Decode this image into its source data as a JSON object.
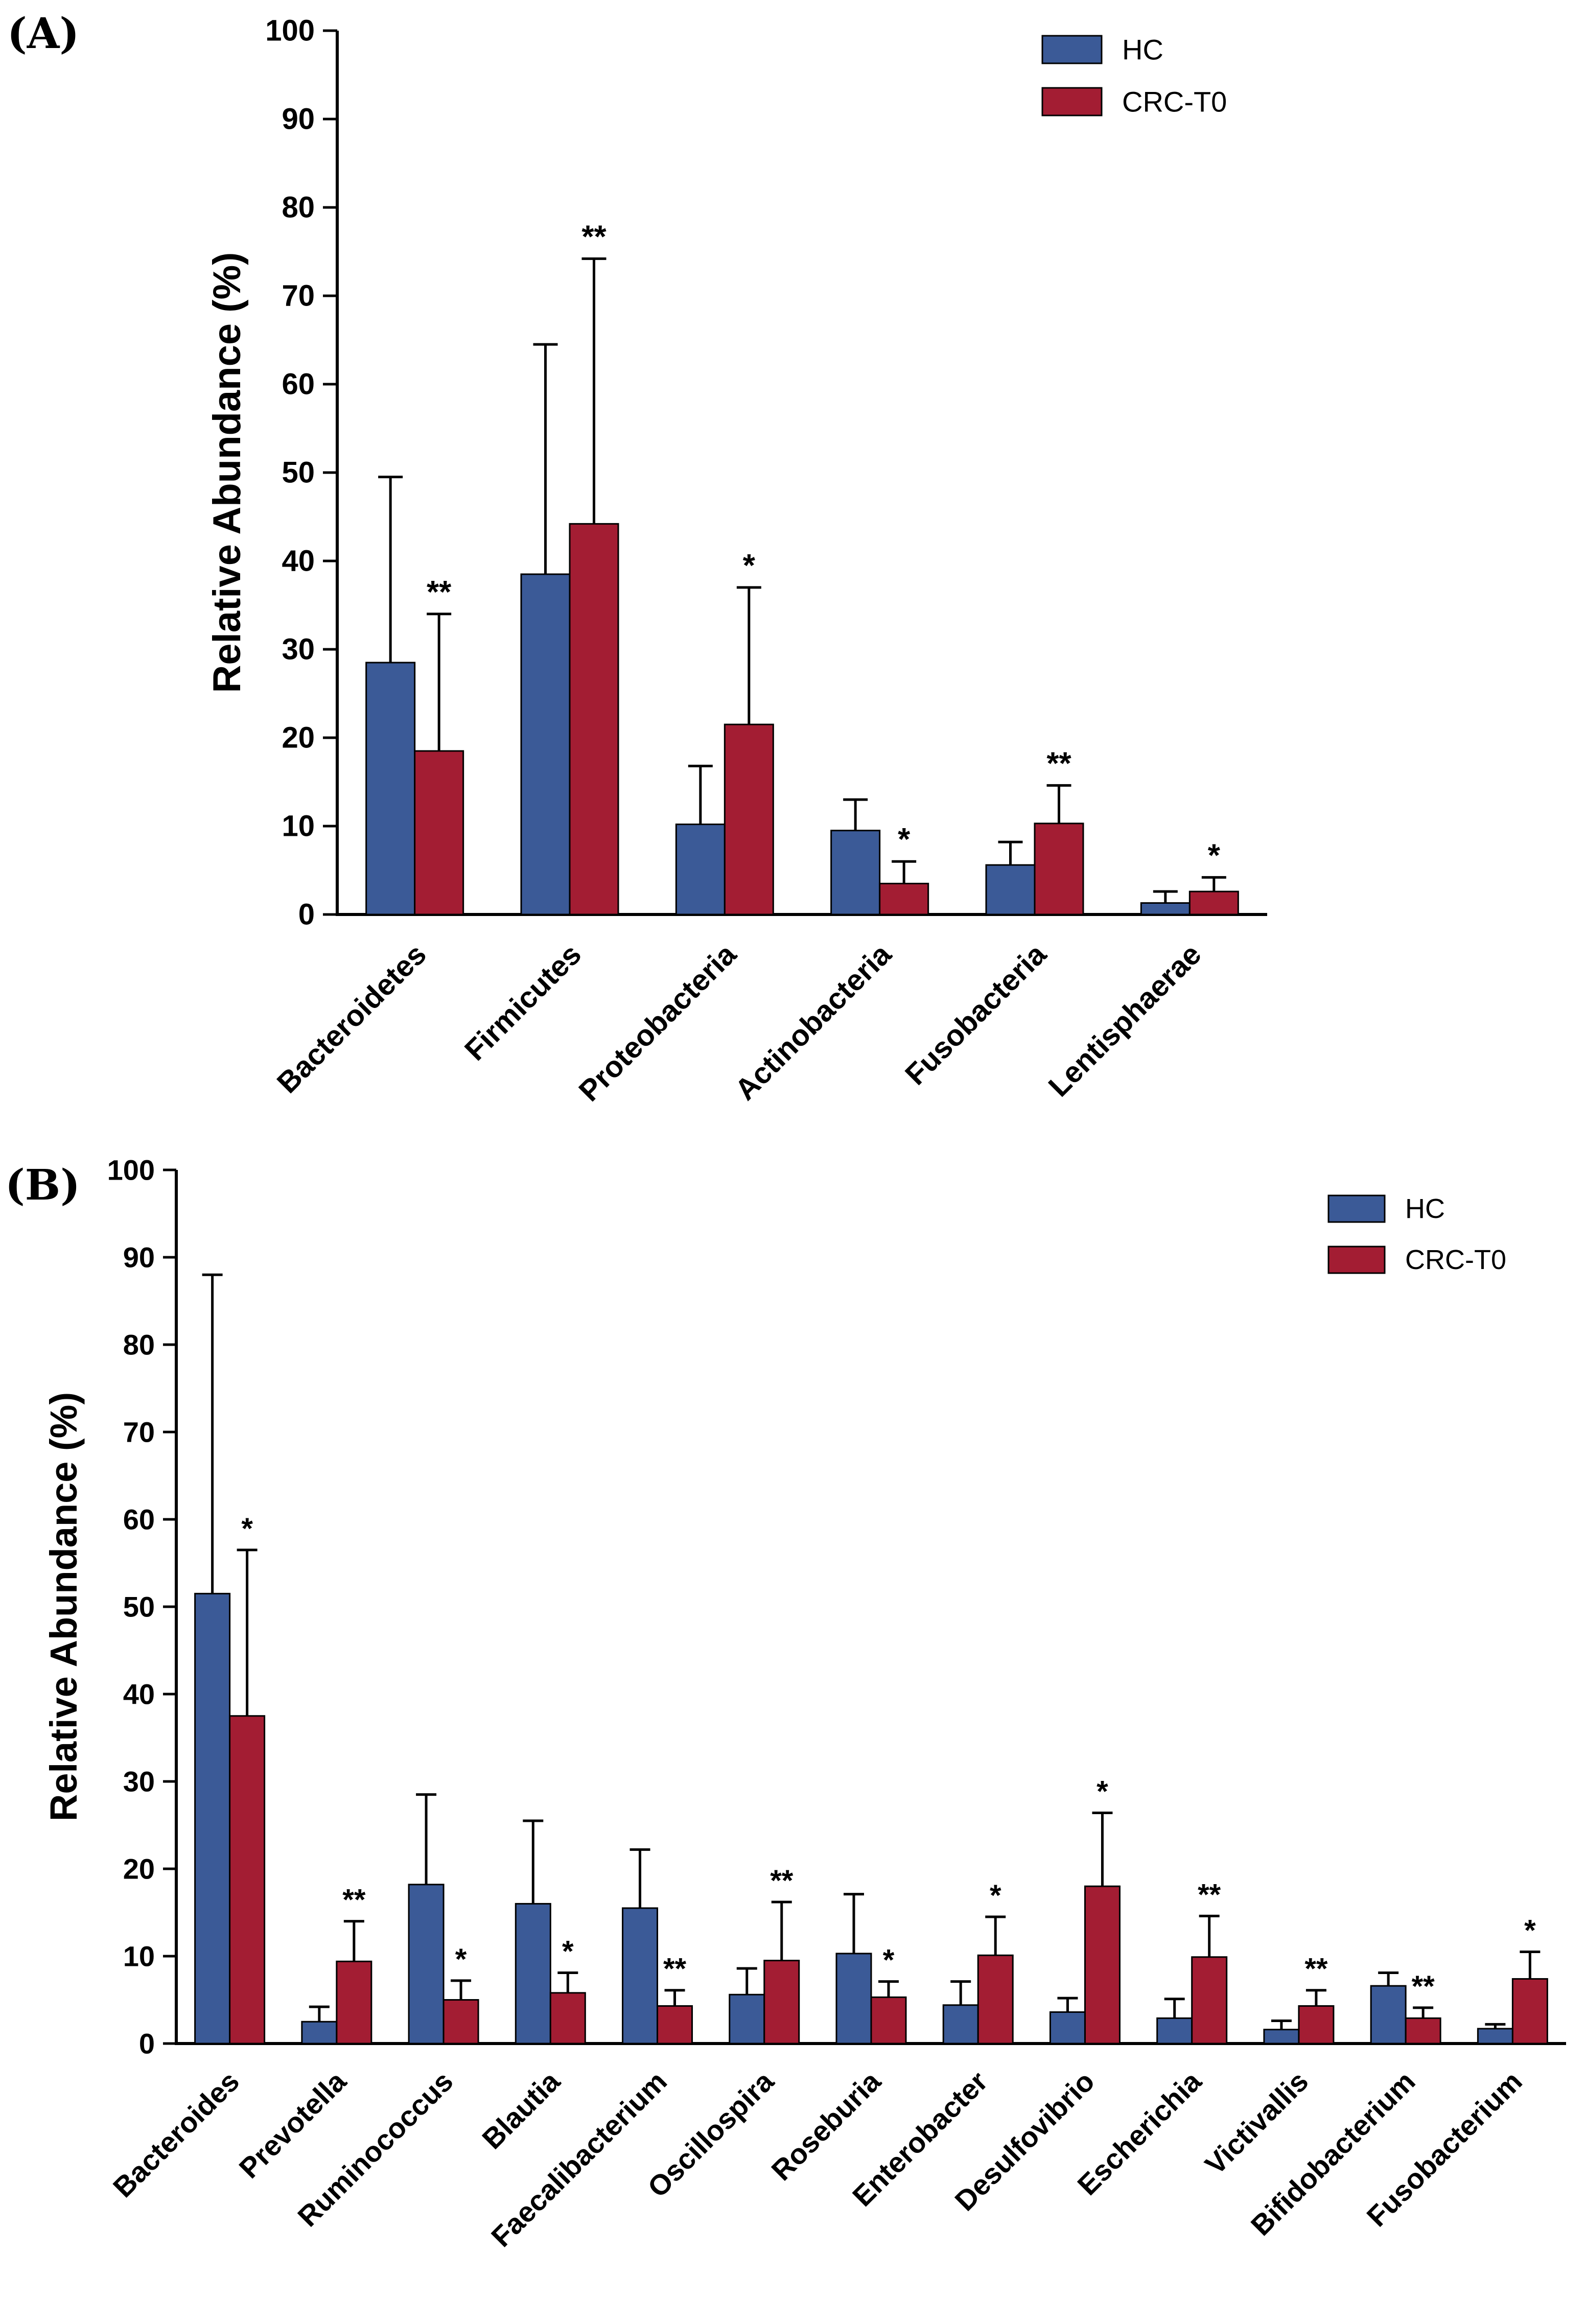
{
  "figure": {
    "panel_a_label": "(A)",
    "panel_b_label": "(B)"
  },
  "chart_data": [
    {
      "type": "bar",
      "panel": "(A)",
      "title": "",
      "xlabel": "",
      "ylabel": "Relative Abundance (%)",
      "ylim": [
        0,
        100
      ],
      "ytick": 10,
      "grid": false,
      "legend_position": "top-right",
      "legend": [
        "HC",
        "CRC-T0"
      ],
      "categories": [
        "Bacteroidetes",
        "Firmicutes",
        "Proteobacteria",
        "Actinobacteria",
        "Fusobacteria",
        "Lentisphaerae"
      ],
      "series": [
        {
          "name": "HC",
          "color": "#3B5A97",
          "values": [
            28.5,
            38.5,
            10.2,
            9.5,
            5.6,
            1.3
          ],
          "errors": [
            21.0,
            26.0,
            6.6,
            3.5,
            2.6,
            1.3
          ]
        },
        {
          "name": "CRC-T0",
          "color": "#A31D33",
          "values": [
            18.5,
            44.2,
            21.5,
            3.5,
            10.3,
            2.6
          ],
          "errors": [
            15.5,
            30.0,
            15.5,
            2.5,
            4.3,
            1.6
          ]
        }
      ],
      "significance": [
        "**",
        "**",
        "*",
        "*",
        "**",
        "*"
      ],
      "significance_on": 1
    },
    {
      "type": "bar",
      "panel": "(B)",
      "title": "",
      "xlabel": "",
      "ylabel": "Relative Abundance (%)",
      "ylim": [
        0,
        100
      ],
      "ytick": 10,
      "grid": false,
      "legend_position": "top-right",
      "legend": [
        "HC",
        "CRC-T0"
      ],
      "categories": [
        "Bacteroides",
        "Prevotella",
        "Ruminococcus",
        "Blautia",
        "Faecalibacterium",
        "Oscillospira",
        "Roseburia",
        "Enterobacter",
        "Desulfovibrio",
        "Escherichia",
        "Victivallis",
        "Bifidobacterium",
        "Fusobacterium"
      ],
      "series": [
        {
          "name": "HC",
          "color": "#3B5A97",
          "values": [
            51.5,
            2.5,
            18.2,
            16.0,
            15.5,
            5.6,
            10.3,
            4.4,
            3.6,
            2.9,
            1.6,
            6.6,
            1.7
          ],
          "errors": [
            36.5,
            1.7,
            10.3,
            9.5,
            6.7,
            3.0,
            6.8,
            2.7,
            1.6,
            2.2,
            1.0,
            1.5,
            0.5
          ]
        },
        {
          "name": "CRC-T0",
          "color": "#A31D33",
          "values": [
            37.5,
            9.4,
            5.0,
            5.8,
            4.3,
            9.5,
            5.3,
            10.1,
            18.0,
            9.9,
            4.3,
            2.9,
            7.4
          ],
          "errors": [
            19.0,
            4.6,
            2.2,
            2.3,
            1.8,
            6.7,
            1.8,
            4.4,
            8.4,
            4.7,
            1.8,
            1.2,
            3.1
          ]
        }
      ],
      "significance": [
        "*",
        "**",
        "*",
        "*",
        "**",
        "**",
        "*",
        "*",
        "*",
        "**",
        "**",
        "**",
        "*"
      ],
      "significance_on": 1
    }
  ]
}
